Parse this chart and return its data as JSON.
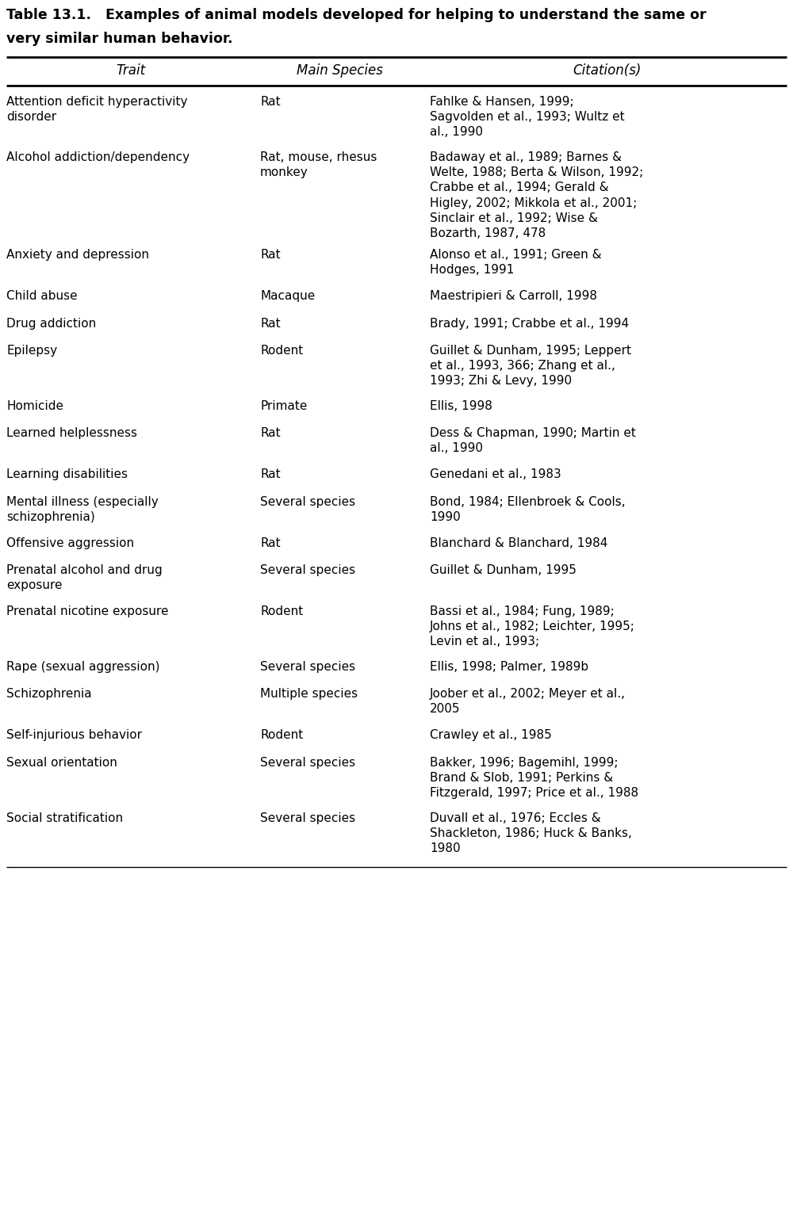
{
  "title_line1": "Table 13.1.   Examples of animal models developed for helping to understand the same or",
  "title_line2": "very similar human behavior.",
  "col_headers": [
    "Trait",
    "Main Species",
    "Citation(s)"
  ],
  "rows": [
    {
      "trait": "Attention deficit hyperactivity\ndisorder",
      "species": "Rat",
      "citations": "Fahlke & Hansen, 1999;\nSagvolden et al., 1993; Wultz et\nal., 1990"
    },
    {
      "trait": "Alcohol addiction/dependency",
      "species": "Rat, mouse, rhesus\nmonkey",
      "citations": "Badaway et al., 1989; Barnes &\nWelte, 1988; Berta & Wilson, 1992;\nCrabbe et al., 1994; Gerald &\nHigley, 2002; Mikkola et al., 2001;\nSinclair et al., 1992; Wise &\nBozarth, 1987, 478"
    },
    {
      "trait": "Anxiety and depression",
      "species": "Rat",
      "citations": "Alonso et al., 1991; Green &\nHodges, 1991"
    },
    {
      "trait": "Child abuse",
      "species": "Macaque",
      "citations": "Maestripieri & Carroll, 1998"
    },
    {
      "trait": "Drug addiction",
      "species": "Rat",
      "citations": "Brady, 1991; Crabbe et al., 1994"
    },
    {
      "trait": "Epilepsy",
      "species": "Rodent",
      "citations": "Guillet & Dunham, 1995; Leppert\net al., 1993, 366; Zhang et al.,\n1993; Zhi & Levy, 1990"
    },
    {
      "trait": "Homicide",
      "species": "Primate",
      "citations": "Ellis, 1998"
    },
    {
      "trait": "Learned helplessness",
      "species": "Rat",
      "citations": "Dess & Chapman, 1990; Martin et\nal., 1990"
    },
    {
      "trait": "Learning disabilities",
      "species": "Rat",
      "citations": "Genedani et al., 1983"
    },
    {
      "trait": "Mental illness (especially\nschizophrenia)",
      "species": "Several species",
      "citations": "Bond, 1984; Ellenbroek & Cools,\n1990"
    },
    {
      "trait": "Offensive aggression",
      "species": "Rat",
      "citations": "Blanchard & Blanchard, 1984"
    },
    {
      "trait": "Prenatal alcohol and drug\nexposure",
      "species": "Several species",
      "citations": "Guillet & Dunham, 1995"
    },
    {
      "trait": "Prenatal nicotine exposure",
      "species": "Rodent",
      "citations": "Bassi et al., 1984; Fung, 1989;\nJohns et al., 1982; Leichter, 1995;\nLevin et al., 1993;"
    },
    {
      "trait": "Rape (sexual aggression)",
      "species": "Several species",
      "citations": "Ellis, 1998; Palmer, 1989b"
    },
    {
      "trait": "Schizophrenia",
      "species": "Multiple species",
      "citations": "Joober et al., 2002; Meyer et al.,\n2005"
    },
    {
      "trait": "Self-injurious behavior",
      "species": "Rodent",
      "citations": "Crawley et al., 1985"
    },
    {
      "trait": "Sexual orientation",
      "species": "Several species",
      "citations": "Bakker, 1996; Bagemihl, 1999;\nBrand & Slob, 1991; Perkins &\nFitzgerald, 1997; Price et al., 1988"
    },
    {
      "trait": "Social stratification",
      "species": "Several species",
      "citations": "Duvall et al., 1976; Eccles &\nShackleton, 1986; Huck & Banks,\n1980"
    }
  ],
  "bg_color": "#ffffff",
  "text_color": "#000000",
  "line_color": "#000000",
  "font_size": 11.0,
  "title_font_size": 12.5,
  "header_font_size": 12.0
}
